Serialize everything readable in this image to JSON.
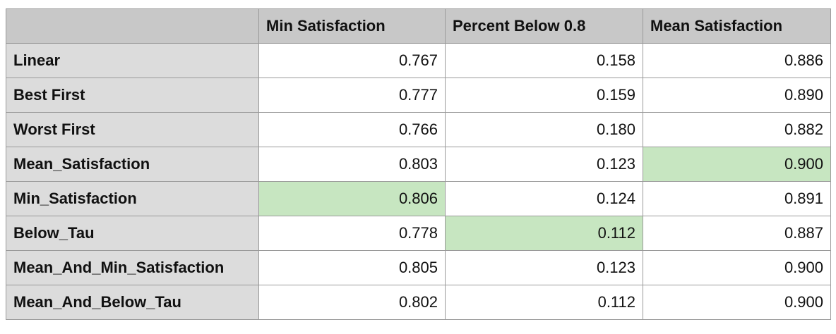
{
  "chart_data": {
    "type": "table",
    "columns": [
      "Min Satisfaction",
      "Percent Below 0.8",
      "Mean Satisfaction"
    ],
    "rows": [
      {
        "label": "Linear",
        "values": [
          "0.767",
          "0.158",
          "0.886"
        ],
        "highlight": [
          false,
          false,
          false
        ]
      },
      {
        "label": "Best First",
        "values": [
          "0.777",
          "0.159",
          "0.890"
        ],
        "highlight": [
          false,
          false,
          false
        ]
      },
      {
        "label": "Worst First",
        "values": [
          "0.766",
          "0.180",
          "0.882"
        ],
        "highlight": [
          false,
          false,
          false
        ]
      },
      {
        "label": "Mean_Satisfaction",
        "values": [
          "0.803",
          "0.123",
          "0.900"
        ],
        "highlight": [
          false,
          false,
          true
        ]
      },
      {
        "label": "Min_Satisfaction",
        "values": [
          "0.806",
          "0.124",
          "0.891"
        ],
        "highlight": [
          true,
          false,
          false
        ]
      },
      {
        "label": "Below_Tau",
        "values": [
          "0.778",
          "0.112",
          "0.887"
        ],
        "highlight": [
          false,
          true,
          false
        ]
      },
      {
        "label": "Mean_And_Min_Satisfaction",
        "values": [
          "0.805",
          "0.123",
          "0.900"
        ],
        "highlight": [
          false,
          false,
          false
        ]
      },
      {
        "label": "Mean_And_Below_Tau",
        "values": [
          "0.802",
          "0.112",
          "0.900"
        ],
        "highlight": [
          false,
          false,
          false
        ]
      }
    ],
    "colors": {
      "header": "#c8c8c8",
      "row_header": "#dcdcdc",
      "highlight": "#c7e6c1",
      "border": "#9a9a9a"
    }
  }
}
